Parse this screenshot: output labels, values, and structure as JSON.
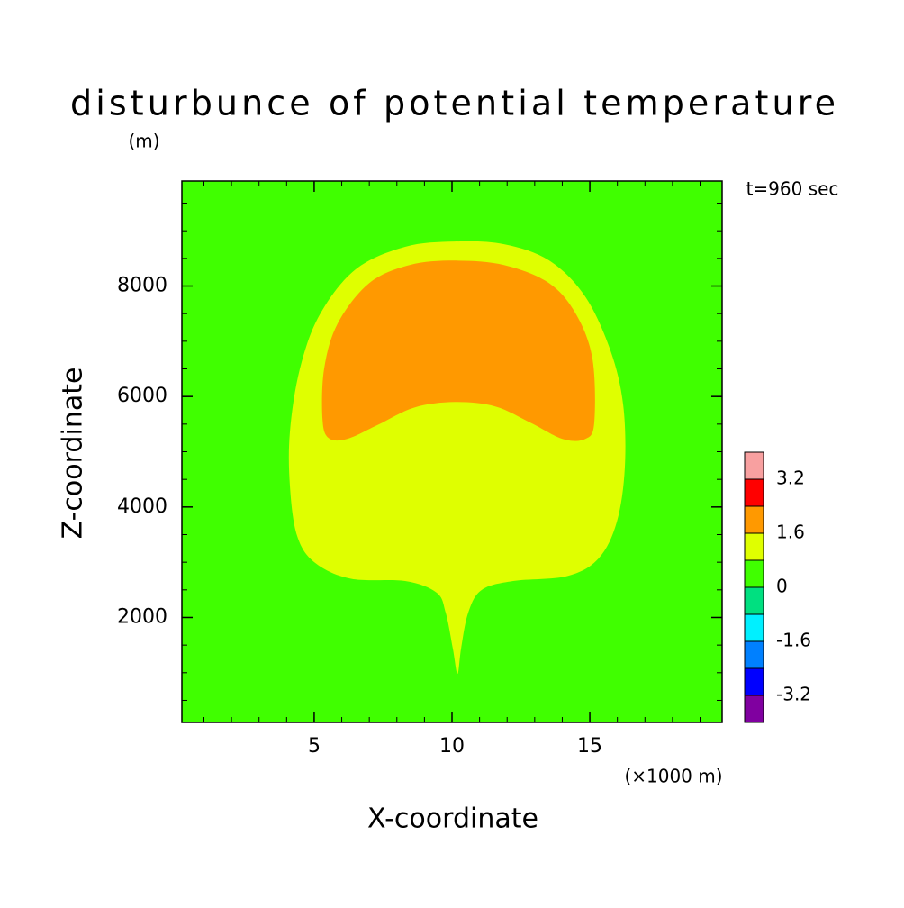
{
  "chart_data": {
    "type": "contour",
    "title": "disturbunce of potential temperature",
    "y_unit": "(m)",
    "x_unit": "(×1000 m)",
    "xlabel": "X-coordinate",
    "ylabel": "Z-coordinate",
    "annotation": "t=960 sec",
    "xlim": [
      0.2,
      19.8
    ],
    "ylim": [
      100,
      9900
    ],
    "xticks": [
      5,
      10,
      15
    ],
    "yticks": [
      2000,
      4000,
      6000,
      8000
    ],
    "xminorticks": [
      1,
      2,
      3,
      4,
      5,
      6,
      7,
      8,
      9,
      10,
      11,
      12,
      13,
      14,
      15,
      16,
      17,
      18,
      19
    ],
    "yminorticks": [
      500,
      1000,
      1500,
      2000,
      2500,
      3000,
      3500,
      4000,
      4500,
      5000,
      5500,
      6000,
      6500,
      7000,
      7500,
      8000,
      8500,
      9000,
      9500
    ],
    "levels": [
      -4,
      -3.2,
      -2.4,
      -1.6,
      -0.8,
      0,
      0.8,
      1.6,
      2.4,
      3.2,
      4
    ],
    "colors": [
      "#8000a0",
      "#0000ff",
      "#0080ff",
      "#00f0ff",
      "#00e080",
      "#40ff00",
      "#dfff00",
      "#ff9900",
      "#ff0000",
      "#f8a0a0"
    ],
    "colorbar_ticks": [
      3.2,
      1.6,
      0,
      -1.6,
      -3.2
    ],
    "regions": [
      {
        "value": 0,
        "x": [
          0.2,
          19.8,
          19.8,
          0.2
        ],
        "y": [
          100,
          100,
          9900,
          9900
        ]
      },
      {
        "value": 0.8,
        "x": [
          10.1,
          11.89,
          13.53,
          14.83,
          15.75,
          16.21,
          16.27,
          15.98,
          15.32,
          14.18,
          12.22,
          11.08,
          10.59,
          10.33,
          10.2,
          10.03,
          9.77,
          9.44,
          8.3,
          6.34,
          5.03,
          4.38,
          4.12,
          4.12,
          4.48,
          5.2,
          6.5,
          8.3
        ],
        "y": [
          8805,
          8757,
          8460,
          7810,
          6830,
          5850,
          4710,
          3730,
          3070,
          2750,
          2660,
          2500,
          2090,
          1440,
          980,
          1440,
          2090,
          2450,
          2660,
          2700,
          2990,
          3480,
          4380,
          5360,
          6500,
          7480,
          8300,
          8710
        ]
      },
      {
        "value": 1.6,
        "x": [
          10.1,
          11.89,
          13.53,
          14.51,
          15.1,
          15.16,
          14.83,
          14.02,
          12.87,
          11.57,
          10.1,
          8.63,
          7.32,
          6.18,
          5.52,
          5.3,
          5.36,
          5.85,
          6.99,
          8.46
        ],
        "y": [
          8460,
          8380,
          8050,
          7480,
          6670,
          5520,
          5230,
          5230,
          5520,
          5820,
          5900,
          5800,
          5490,
          5230,
          5250,
          5600,
          6500,
          7320,
          8050,
          8380
        ]
      }
    ]
  }
}
